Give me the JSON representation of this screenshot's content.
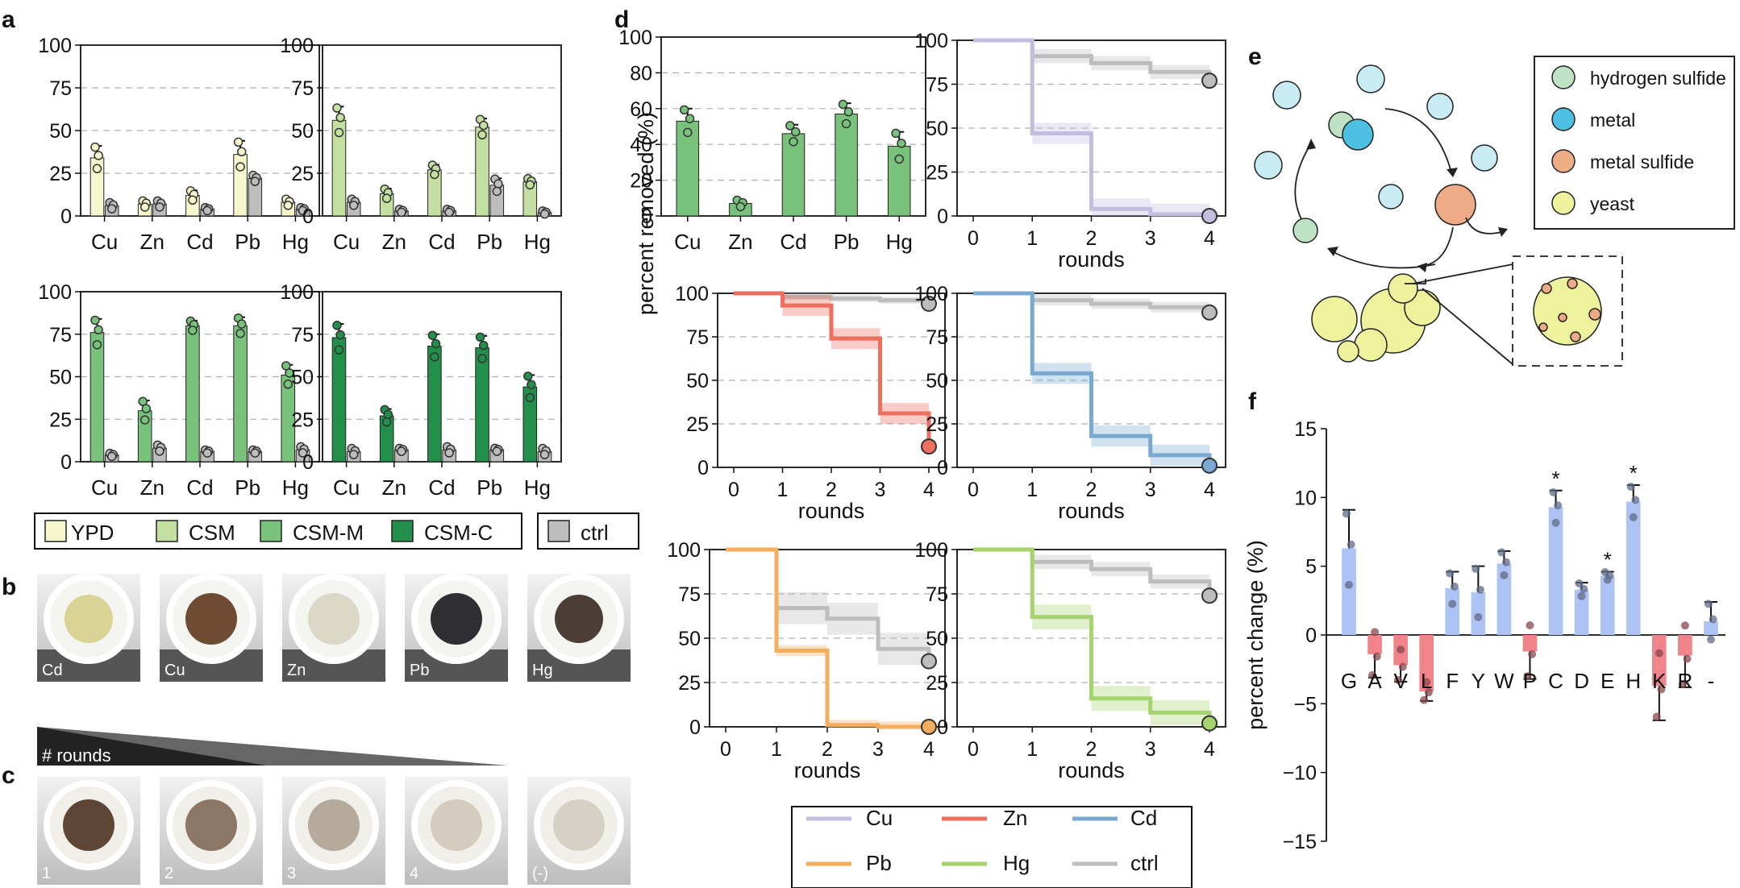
{
  "colors": {
    "YPD": "#f8f6cd",
    "CSM": "#c4e0a0",
    "CSM-M": "#79c27c",
    "CSM-C": "#22904a",
    "ctrl": "#bdbdbd",
    "Cu": "#c3bedf",
    "Zn": "#ee6e5f",
    "Cd": "#79a9d1",
    "Pb": "#f5ad5e",
    "Hg": "#a5d36d",
    "hydrogen_sulfide": "#bde3c4",
    "metal": "#4cbfe3",
    "metal_sulfide": "#eeac86",
    "yeast": "#eef29c",
    "neutral": "#aec3f5",
    "charged": "#f1838a"
  },
  "panel_labels": [
    "a",
    "b",
    "c",
    "d",
    "e",
    "f"
  ],
  "panel_b_labels": [
    "Cd",
    "Cu",
    "Zn",
    "Pb",
    "Hg"
  ],
  "panel_c": {
    "gradient_label": "# rounds",
    "labels": [
      "1",
      "2",
      "3",
      "4",
      "(-)"
    ]
  },
  "panel_e_legend": [
    "hydrogen sulfide",
    "metal",
    "metal sulfide",
    "yeast"
  ],
  "chart_data": [
    {
      "id": "a1",
      "type": "bar",
      "categories": [
        "Cu",
        "Zn",
        "Cd",
        "Pb",
        "Hg"
      ],
      "ylim": [
        0,
        100
      ],
      "yticks": [
        "0",
        "25",
        "50",
        "75",
        "100"
      ],
      "grid": true,
      "series": [
        {
          "name": "YPD",
          "color_key": "YPD",
          "values": [
            34,
            7,
            12,
            36,
            8
          ],
          "errors": [
            7,
            2,
            3,
            8,
            2
          ]
        },
        {
          "name": "ctrl",
          "color_key": "ctrl",
          "values": [
            6,
            7,
            4,
            22,
            4
          ],
          "errors": [
            2,
            2,
            1,
            2,
            1
          ]
        }
      ]
    },
    {
      "id": "a2",
      "type": "bar",
      "categories": [
        "Cu",
        "Zn",
        "Cd",
        "Pb",
        "Hg"
      ],
      "ylim": [
        0,
        100
      ],
      "yticks": [
        "0",
        "25",
        "50",
        "75",
        "100"
      ],
      "grid": true,
      "series": [
        {
          "name": "CSM",
          "color_key": "CSM",
          "values": [
            56,
            13,
            27,
            52,
            20
          ],
          "errors": [
            8,
            3,
            3,
            5,
            2
          ]
        },
        {
          "name": "ctrl",
          "color_key": "ctrl",
          "values": [
            8,
            3,
            3,
            18,
            2
          ],
          "errors": [
            2,
            1,
            1,
            4,
            1
          ]
        }
      ]
    },
    {
      "id": "a3",
      "type": "bar",
      "categories": [
        "Cu",
        "Zn",
        "Cd",
        "Pb",
        "Hg"
      ],
      "ylim": [
        0,
        100
      ],
      "yticks": [
        "0",
        "25",
        "50",
        "75",
        "100"
      ],
      "grid": true,
      "series": [
        {
          "name": "CSM-M",
          "color_key": "CSM-M",
          "values": [
            76,
            30,
            80,
            80,
            51
          ],
          "errors": [
            8,
            6,
            3,
            5,
            6
          ]
        },
        {
          "name": "ctrl",
          "color_key": "ctrl",
          "values": [
            4,
            8,
            6,
            6,
            7
          ],
          "errors": [
            1,
            2,
            1,
            1,
            2
          ]
        }
      ]
    },
    {
      "id": "a4",
      "type": "bar",
      "categories": [
        "Cu",
        "Zn",
        "Cd",
        "Pb",
        "Hg"
      ],
      "ylim": [
        0,
        100
      ],
      "yticks": [
        "0",
        "25",
        "50",
        "75",
        "100"
      ],
      "grid": true,
      "series": [
        {
          "name": "CSM-C",
          "color_key": "CSM-C",
          "values": [
            73,
            27,
            68,
            67,
            44
          ],
          "errors": [
            8,
            4,
            7,
            7,
            7
          ]
        },
        {
          "name": "ctrl",
          "color_key": "ctrl",
          "values": [
            6,
            7,
            7,
            7,
            6
          ],
          "errors": [
            2,
            1,
            2,
            1,
            2
          ]
        }
      ]
    },
    {
      "id": "a_legend",
      "type": "legend",
      "entries": [
        {
          "name": "YPD",
          "color_key": "YPD"
        },
        {
          "name": "CSM",
          "color_key": "CSM"
        },
        {
          "name": "CSM-M",
          "color_key": "CSM-M"
        },
        {
          "name": "CSM-C",
          "color_key": "CSM-C"
        },
        {
          "name": "ctrl",
          "color_key": "ctrl"
        }
      ]
    },
    {
      "id": "d1",
      "type": "bar",
      "categories": [
        "Cu",
        "Zn",
        "Cd",
        "Pb",
        "Hg"
      ],
      "ylim": [
        0,
        100
      ],
      "yticks": [
        "0",
        "20",
        "40",
        "60",
        "80",
        "100"
      ],
      "grid": true,
      "ylabel": "percent removed (%)",
      "series": [
        {
          "color_key": "CSM-M",
          "values": [
            53,
            7,
            46,
            57,
            39
          ],
          "errors": [
            7,
            2,
            5,
            6,
            8
          ]
        }
      ]
    },
    {
      "id": "d2",
      "type": "line",
      "step": true,
      "x": [
        0,
        1,
        2,
        3,
        4
      ],
      "xlabel": "rounds",
      "ylim": [
        0,
        100
      ],
      "yticks": [
        "0",
        "25",
        "50",
        "75",
        "100"
      ],
      "xticks": [
        "0",
        "1",
        "2",
        "3",
        "4"
      ],
      "grid": true,
      "series": [
        {
          "name": "ctrl",
          "color_key": "ctrl",
          "values": [
            100,
            91,
            87,
            82,
            77
          ],
          "band": 4
        },
        {
          "name": "Cu",
          "color_key": "Cu",
          "values": [
            100,
            47,
            4,
            1,
            0
          ],
          "band": 6
        }
      ]
    },
    {
      "id": "d3",
      "type": "line",
      "step": true,
      "x": [
        0,
        1,
        2,
        3,
        4
      ],
      "xlabel": "rounds",
      "ylim": [
        0,
        100
      ],
      "yticks": [
        "0",
        "25",
        "50",
        "75",
        "100"
      ],
      "xticks": [
        "0",
        "1",
        "2",
        "3",
        "4"
      ],
      "grid": true,
      "series": [
        {
          "name": "ctrl",
          "color_key": "ctrl",
          "values": [
            100,
            98,
            97,
            96,
            94
          ],
          "band": 2
        },
        {
          "name": "Zn",
          "color_key": "Zn",
          "values": [
            100,
            93,
            74,
            31,
            12
          ],
          "band": 6
        }
      ]
    },
    {
      "id": "d4",
      "type": "line",
      "step": true,
      "x": [
        0,
        1,
        2,
        3,
        4
      ],
      "xlabel": "rounds",
      "ylim": [
        0,
        100
      ],
      "yticks": [
        "0",
        "25",
        "50",
        "75",
        "100"
      ],
      "xticks": [
        "0",
        "1",
        "2",
        "3",
        "4"
      ],
      "grid": true,
      "series": [
        {
          "name": "ctrl",
          "color_key": "ctrl",
          "values": [
            100,
            96,
            94,
            92,
            89
          ],
          "band": 3
        },
        {
          "name": "Cd",
          "color_key": "Cd",
          "values": [
            100,
            54,
            18,
            7,
            1
          ],
          "band": 6
        }
      ]
    },
    {
      "id": "d5",
      "type": "line",
      "step": true,
      "x": [
        0,
        1,
        2,
        3,
        4
      ],
      "xlabel": "rounds",
      "ylim": [
        0,
        100
      ],
      "yticks": [
        "0",
        "25",
        "50",
        "75",
        "100"
      ],
      "xticks": [
        "0",
        "1",
        "2",
        "3",
        "4"
      ],
      "grid": true,
      "series": [
        {
          "name": "ctrl",
          "color_key": "ctrl",
          "values": [
            100,
            67,
            61,
            44,
            37
          ],
          "band": 9
        },
        {
          "name": "Pb",
          "color_key": "Pb",
          "values": [
            100,
            43,
            1,
            0,
            0
          ],
          "band": 3
        }
      ]
    },
    {
      "id": "d6",
      "type": "line",
      "step": true,
      "x": [
        0,
        1,
        2,
        3,
        4
      ],
      "xlabel": "rounds",
      "ylim": [
        0,
        100
      ],
      "yticks": [
        "0",
        "25",
        "50",
        "75",
        "100"
      ],
      "xticks": [
        "0",
        "1",
        "2",
        "3",
        "4"
      ],
      "grid": true,
      "series": [
        {
          "name": "ctrl",
          "color_key": "ctrl",
          "values": [
            100,
            93,
            89,
            82,
            74
          ],
          "band": 4
        },
        {
          "name": "Hg",
          "color_key": "Hg",
          "values": [
            100,
            62,
            16,
            8,
            2
          ],
          "band": 7
        }
      ]
    },
    {
      "id": "d_legend",
      "type": "legend",
      "entries": [
        {
          "name": "Cu",
          "color_key": "Cu"
        },
        {
          "name": "Zn",
          "color_key": "Zn"
        },
        {
          "name": "Cd",
          "color_key": "Cd"
        },
        {
          "name": "Pb",
          "color_key": "Pb"
        },
        {
          "name": "Hg",
          "color_key": "Hg"
        },
        {
          "name": "ctrl",
          "color_key": "ctrl"
        }
      ]
    },
    {
      "id": "f",
      "type": "bar",
      "categories": [
        "G",
        "A",
        "V",
        "L",
        "F",
        "Y",
        "W",
        "P",
        "C",
        "D",
        "E",
        "H",
        "K",
        "R",
        "-"
      ],
      "ylim": [
        -15,
        15
      ],
      "yticks": [
        "15",
        "10",
        "5",
        "0",
        "−5",
        "−10",
        "−15"
      ],
      "ylabel": "percent change (%)",
      "values": [
        6.3,
        -1.4,
        -2.2,
        -4.1,
        3.4,
        3.1,
        5.2,
        -1.2,
        9.3,
        3.3,
        4.3,
        9.7,
        -3.7,
        -1.5,
        1.0
      ],
      "errors": [
        2.8,
        1.7,
        1.2,
        0.7,
        1.2,
        1.9,
        0.9,
        2.0,
        1.2,
        0.5,
        0.3,
        1.2,
        2.5,
        2.3,
        1.4
      ],
      "color_keys": [
        "neutral",
        "charged",
        "charged",
        "charged",
        "neutral",
        "neutral",
        "neutral",
        "charged",
        "neutral",
        "neutral",
        "neutral",
        "neutral",
        "charged",
        "charged",
        "neutral"
      ],
      "annotations": [
        {
          "category": "C",
          "text": "*"
        },
        {
          "category": "E",
          "text": "*"
        },
        {
          "category": "H",
          "text": "*"
        }
      ]
    }
  ]
}
